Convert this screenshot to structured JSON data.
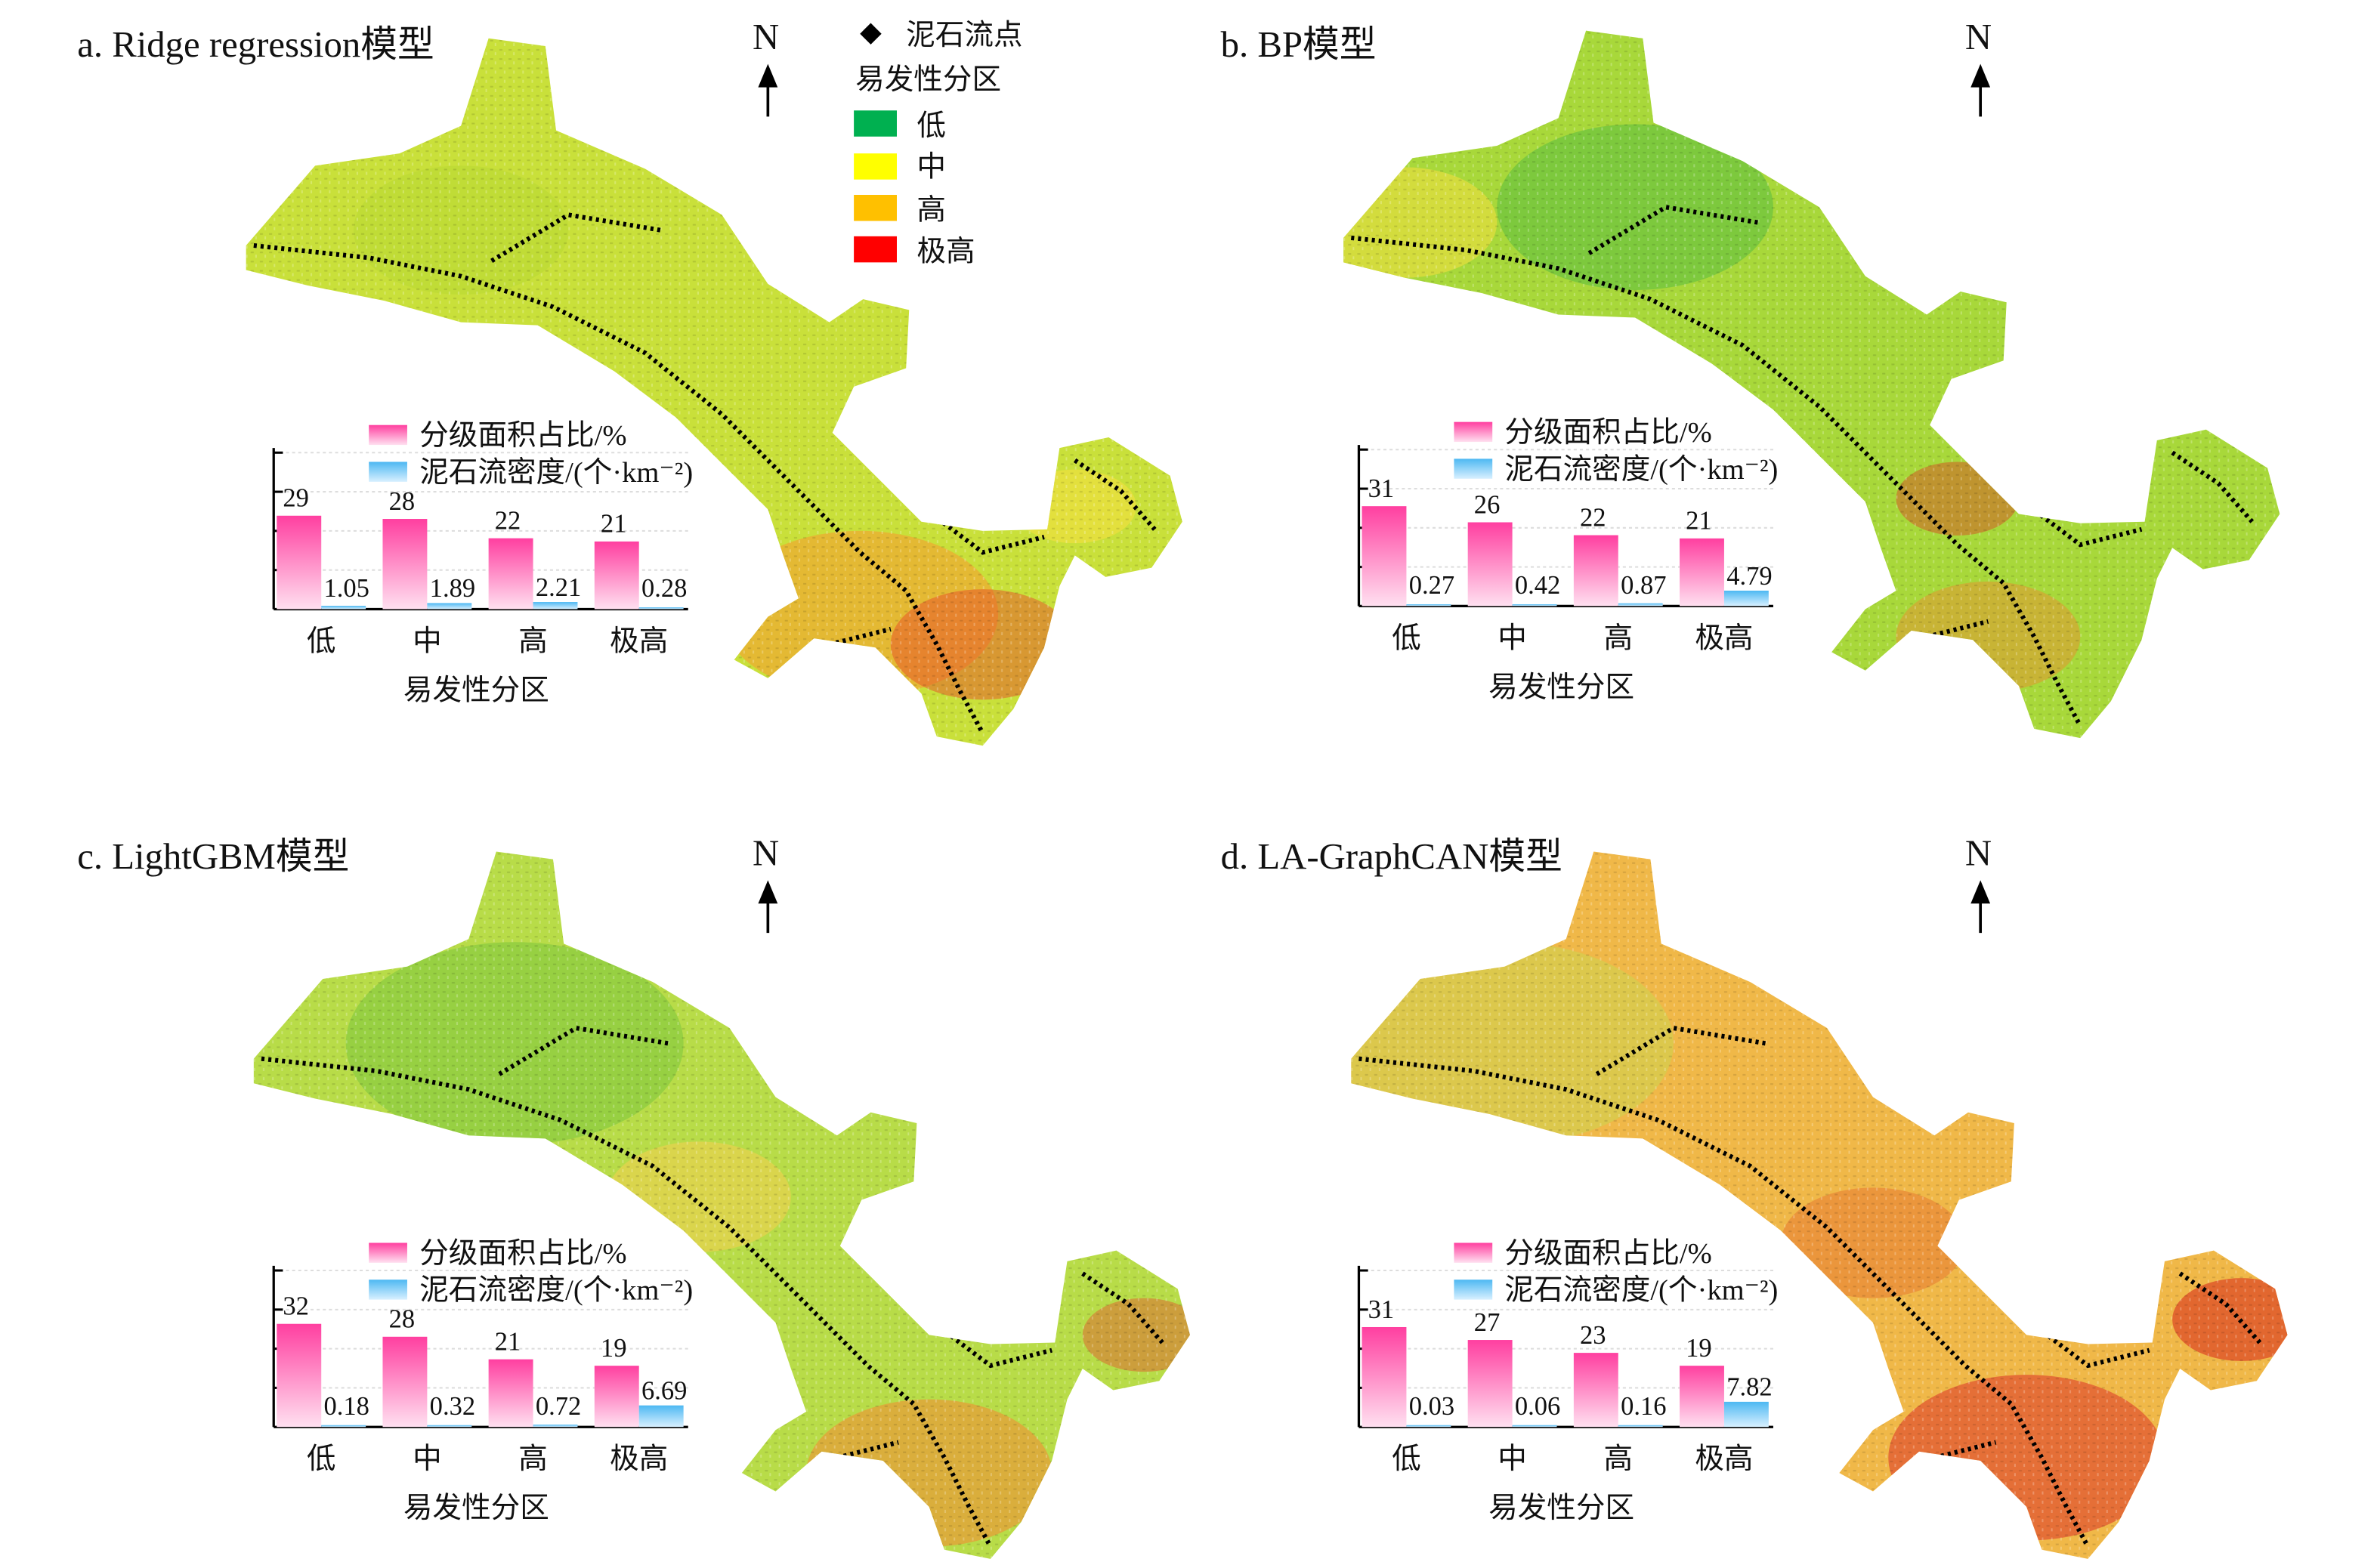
{
  "legend": {
    "point_label": "泥石流点",
    "zone_title": "易发性分区",
    "classes": [
      {
        "label": "低",
        "color": "#00b050"
      },
      {
        "label": "中",
        "color": "#ffff00"
      },
      {
        "label": "高",
        "color": "#ffc000"
      },
      {
        "label": "极高",
        "color": "#ff0000"
      }
    ]
  },
  "north_label": "N",
  "panels": [
    {
      "title": "a. Ridge regression模型",
      "map_tone": "yellow-orange"
    },
    {
      "title": "b. BP模型",
      "map_tone": "green-yellow"
    },
    {
      "title": "c. LightGBM模型",
      "map_tone": "green-yellow-orange"
    },
    {
      "title": "d. LA-GraphCAN模型",
      "map_tone": "orange-red"
    }
  ],
  "chart_data": [
    {
      "type": "bar",
      "panel": "a",
      "categories": [
        "低",
        "中",
        "高",
        "极高"
      ],
      "xlabel": "易发性分区",
      "series": [
        {
          "name": "分级面积占比/%",
          "values": [
            29,
            28,
            22,
            21
          ],
          "color": "#ff4fa8"
        },
        {
          "name": "泥石流密度/(个·km⁻²)",
          "values": [
            1.05,
            1.89,
            2.21,
            0.28
          ],
          "color": "#5ec4f5"
        }
      ],
      "value_labels": [
        [
          "29",
          "28",
          "22",
          "21"
        ],
        [
          "1.05",
          "1.89",
          "2.21",
          "0.28"
        ]
      ],
      "grid": true
    },
    {
      "type": "bar",
      "panel": "b",
      "categories": [
        "低",
        "中",
        "高",
        "极高"
      ],
      "xlabel": "易发性分区",
      "series": [
        {
          "name": "分级面积占比/%",
          "values": [
            31,
            26,
            22,
            21
          ],
          "color": "#ff4fa8"
        },
        {
          "name": "泥石流密度/(个·km⁻²)",
          "values": [
            0.27,
            0.42,
            0.87,
            4.79
          ],
          "color": "#5ec4f5"
        }
      ],
      "value_labels": [
        [
          "31",
          "26",
          "22",
          "21"
        ],
        [
          "0.27",
          "0.42",
          "0.87",
          "4.79"
        ]
      ],
      "grid": true
    },
    {
      "type": "bar",
      "panel": "c",
      "categories": [
        "低",
        "中",
        "高",
        "极高"
      ],
      "xlabel": "易发性分区",
      "series": [
        {
          "name": "分级面积占比/%",
          "values": [
            32,
            28,
            21,
            19
          ],
          "color": "#ff4fa8"
        },
        {
          "name": "泥石流密度/(个·km⁻²)",
          "values": [
            0.18,
            0.32,
            0.72,
            6.69
          ],
          "color": "#5ec4f5"
        }
      ],
      "value_labels": [
        [
          "32",
          "28",
          "21",
          "19"
        ],
        [
          "0.18",
          "0.32",
          "0.72",
          "6.69"
        ]
      ],
      "grid": true
    },
    {
      "type": "bar",
      "panel": "d",
      "categories": [
        "低",
        "中",
        "高",
        "极高"
      ],
      "xlabel": "易发性分区",
      "series": [
        {
          "name": "分级面积占比/%",
          "values": [
            31,
            27,
            23,
            19
          ],
          "color": "#ff4fa8"
        },
        {
          "name": "泥石流密度/(个·km⁻²)",
          "values": [
            0.03,
            0.06,
            0.16,
            7.82
          ],
          "color": "#5ec4f5"
        }
      ],
      "value_labels": [
        [
          "31",
          "27",
          "23",
          "19"
        ],
        [
          "0.03",
          "0.06",
          "0.16",
          "7.82"
        ]
      ],
      "grid": true
    }
  ]
}
